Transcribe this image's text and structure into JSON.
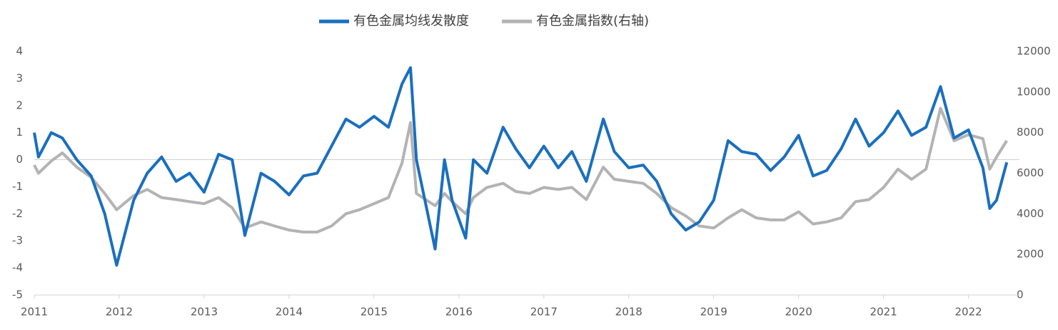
{
  "chart_data": {
    "type": "line",
    "x": [
      2011.0,
      2011.05,
      2011.2,
      2011.33,
      2011.5,
      2011.67,
      2011.83,
      2011.97,
      2012.17,
      2012.33,
      2012.5,
      2012.67,
      2012.83,
      2013.0,
      2013.17,
      2013.33,
      2013.48,
      2013.67,
      2013.83,
      2014.0,
      2014.17,
      2014.33,
      2014.5,
      2014.67,
      2014.83,
      2015.0,
      2015.17,
      2015.33,
      2015.43,
      2015.5,
      2015.72,
      2015.83,
      2015.92,
      2016.08,
      2016.17,
      2016.33,
      2016.52,
      2016.67,
      2016.83,
      2017.0,
      2017.17,
      2017.33,
      2017.5,
      2017.7,
      2017.83,
      2018.0,
      2018.17,
      2018.33,
      2018.5,
      2018.67,
      2018.83,
      2019.0,
      2019.17,
      2019.33,
      2019.5,
      2019.67,
      2019.83,
      2020.0,
      2020.17,
      2020.33,
      2020.5,
      2020.67,
      2020.83,
      2021.0,
      2021.17,
      2021.33,
      2021.5,
      2021.67,
      2021.83,
      2022.0,
      2022.17,
      2022.25,
      2022.33,
      2022.45
    ],
    "series": [
      {
        "name": "有色金属均线发散度",
        "color": "#1a6fbf",
        "values": [
          1.0,
          0.1,
          1.0,
          0.8,
          0.0,
          -0.6,
          -2.0,
          -3.9,
          -1.5,
          -0.5,
          0.1,
          -0.8,
          -0.5,
          -1.2,
          0.2,
          0.0,
          -2.8,
          -0.5,
          -0.8,
          -1.3,
          -0.6,
          -0.5,
          0.5,
          1.5,
          1.2,
          1.6,
          1.2,
          2.8,
          3.4,
          0.0,
          -3.3,
          0.0,
          -1.5,
          -2.9,
          0.0,
          -0.5,
          1.2,
          0.4,
          -0.3,
          0.5,
          -0.3,
          0.3,
          -0.8,
          1.5,
          0.3,
          -0.3,
          -0.2,
          -0.8,
          -2.0,
          -2.6,
          -2.3,
          -1.5,
          0.7,
          0.3,
          0.2,
          -0.4,
          0.1,
          0.9,
          -0.6,
          -0.4,
          0.4,
          1.5,
          0.5,
          1.0,
          1.8,
          0.9,
          1.2,
          2.7,
          0.8,
          1.1,
          -0.3,
          -1.8,
          -1.5,
          -0.1
        ]
      },
      {
        "name": "有色金属指数(右轴)",
        "color": "#b3b3b3",
        "axis": "y2",
        "values": [
          6400,
          6000,
          6600,
          7000,
          6300,
          5800,
          5000,
          4200,
          4900,
          5200,
          4800,
          4700,
          4600,
          4500,
          4800,
          4300,
          3300,
          3600,
          3400,
          3200,
          3100,
          3100,
          3400,
          4000,
          4200,
          4500,
          4800,
          6500,
          8500,
          5000,
          4400,
          5000,
          4600,
          4000,
          4800,
          5300,
          5500,
          5100,
          5000,
          5300,
          5200,
          5300,
          4700,
          6300,
          5700,
          5600,
          5500,
          5000,
          4300,
          3900,
          3400,
          3300,
          3800,
          4200,
          3800,
          3700,
          3700,
          4100,
          3500,
          3600,
          3800,
          4600,
          4700,
          5300,
          6200,
          5700,
          6200,
          9200,
          7600,
          7900,
          7700,
          6200,
          6800,
          7600
        ]
      }
    ],
    "xlim": [
      2011,
      2022.6
    ],
    "xticks": [
      2011,
      2012,
      2013,
      2014,
      2015,
      2016,
      2017,
      2018,
      2019,
      2020,
      2021,
      2022
    ],
    "ylim": [
      -5,
      4
    ],
    "yticks": [
      -5,
      -4,
      -3,
      -2,
      -1,
      0,
      1,
      2,
      3,
      4
    ],
    "y2lim": [
      0,
      12000
    ],
    "y2ticks": [
      0,
      2000,
      4000,
      6000,
      8000,
      10000,
      12000
    ],
    "grid": false,
    "legend": "top"
  }
}
